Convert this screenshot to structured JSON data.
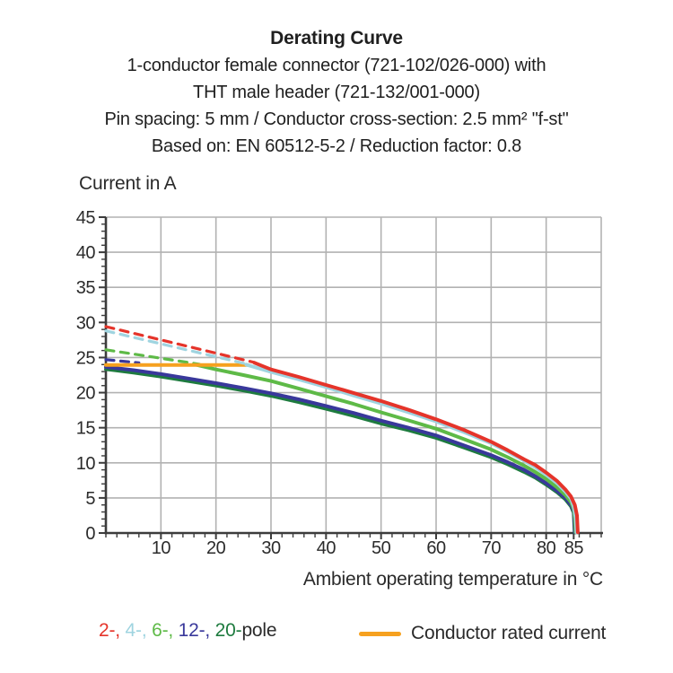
{
  "title": {
    "line1": "Derating Curve",
    "line2": "1-conductor female connector (721-102/026-000) with",
    "line3": "THT male header (721-132/001-000)",
    "line4": "Pin spacing: 5 mm / Conductor cross-section: 2.5 mm² \"f-st\"",
    "line5": "Based on: EN 60512-5-2 / Reduction factor: 0.8"
  },
  "colors": {
    "grid": "#b2b2b2",
    "axis": "#3c3c3c",
    "tick_text": "#2b2b2b",
    "pole2_red": "#e5342a",
    "pole4_cyan": "#9fd4e0",
    "pole6_green": "#5eba47",
    "pole12_navy": "#39389b",
    "pole20_darkgreen": "#1e7b3f",
    "rated_orange": "#f6a11f"
  },
  "chart_data": {
    "type": "line",
    "title": "Derating Curve",
    "ylabel": "Current in A",
    "xlabel": "Ambient operating temperature in °C",
    "xlim": [
      0,
      90
    ],
    "ylim": [
      0,
      45
    ],
    "grid": true,
    "x_major_ticks": [
      10,
      20,
      30,
      40,
      50,
      60,
      70,
      80,
      85
    ],
    "x_gridlines": [
      10,
      20,
      30,
      40,
      50,
      60,
      70,
      80,
      90
    ],
    "y_major_ticks": [
      0,
      5,
      10,
      15,
      20,
      25,
      30,
      35,
      40,
      45
    ],
    "x_minor_step": 2,
    "y_minor_step": 1,
    "legend_position": "bottom",
    "series": [
      {
        "name": "20-pole",
        "color": "#1e7b3f",
        "segments": [
          {
            "style": "solid",
            "points": [
              [
                0,
                23.35
              ],
              [
                5,
                22.85
              ],
              [
                10,
                22.3
              ],
              [
                15,
                21.65
              ],
              [
                20,
                21.0
              ],
              [
                25,
                20.3
              ],
              [
                30,
                19.55
              ],
              [
                35,
                18.65
              ],
              [
                40,
                17.7
              ],
              [
                45,
                16.7
              ],
              [
                50,
                15.6
              ],
              [
                55,
                14.65
              ],
              [
                60,
                13.55
              ],
              [
                65,
                12.2
              ],
              [
                70,
                10.8
              ],
              [
                73,
                9.8
              ],
              [
                76,
                8.7
              ],
              [
                78,
                7.9
              ],
              [
                80,
                6.9
              ],
              [
                82,
                5.8
              ],
              [
                83.5,
                4.8
              ],
              [
                84.5,
                3.8
              ],
              [
                85.0,
                2.9
              ],
              [
                85.1,
                1.3
              ],
              [
                85.15,
                0.1
              ]
            ]
          }
        ]
      },
      {
        "name": "12-pole",
        "color": "#39389b",
        "segments": [
          {
            "style": "dashed",
            "points": [
              [
                0,
                24.7
              ],
              [
                6,
                24.25
              ]
            ]
          },
          {
            "style": "solid",
            "points": [
              [
                0,
                23.65
              ],
              [
                5,
                23.2
              ],
              [
                10,
                22.65
              ],
              [
                15,
                22.0
              ],
              [
                20,
                21.35
              ],
              [
                25,
                20.65
              ],
              [
                30,
                19.9
              ],
              [
                35,
                19.05
              ],
              [
                40,
                18.1
              ],
              [
                45,
                17.1
              ],
              [
                50,
                16.0
              ],
              [
                55,
                15.0
              ],
              [
                60,
                13.9
              ],
              [
                65,
                12.5
              ],
              [
                70,
                11.1
              ],
              [
                73,
                10.1
              ],
              [
                76,
                9.0
              ],
              [
                78,
                8.1
              ],
              [
                80,
                7.1
              ],
              [
                82,
                6.0
              ],
              [
                83.5,
                5.0
              ],
              [
                84.5,
                4.0
              ],
              [
                85.0,
                3.1
              ],
              [
                85.15,
                1.5
              ],
              [
                85.2,
                0.1
              ]
            ]
          }
        ]
      },
      {
        "name": "6-pole",
        "color": "#5eba47",
        "segments": [
          {
            "style": "dashed",
            "points": [
              [
                0,
                26.1
              ],
              [
                17,
                24.05
              ]
            ]
          },
          {
            "style": "solid",
            "points": [
              [
                16.5,
                23.95
              ],
              [
                20,
                23.3
              ],
              [
                25,
                22.5
              ],
              [
                30,
                21.65
              ],
              [
                35,
                20.6
              ],
              [
                40,
                19.5
              ],
              [
                45,
                18.4
              ],
              [
                50,
                17.2
              ],
              [
                55,
                16.05
              ],
              [
                60,
                14.85
              ],
              [
                65,
                13.4
              ],
              [
                70,
                11.9
              ],
              [
                73,
                10.8
              ],
              [
                76,
                9.6
              ],
              [
                78,
                8.7
              ],
              [
                80,
                7.7
              ],
              [
                82,
                6.5
              ],
              [
                83.5,
                5.4
              ],
              [
                84.5,
                4.4
              ],
              [
                85.0,
                3.4
              ],
              [
                85.25,
                1.8
              ],
              [
                85.35,
                0.1
              ]
            ]
          }
        ]
      },
      {
        "name": "Conductor rated current",
        "color": "#f6a11f",
        "segments": [
          {
            "style": "solid",
            "points": [
              [
                0,
                23.95
              ],
              [
                25.8,
                23.95
              ]
            ]
          }
        ]
      },
      {
        "name": "4-pole",
        "color": "#9fd4e0",
        "segments": [
          {
            "style": "dashed",
            "points": [
              [
                0,
                28.8
              ],
              [
                25.5,
                24.1
              ]
            ]
          },
          {
            "style": "solid",
            "points": [
              [
                25.5,
                24.0
              ],
              [
                30,
                22.95
              ],
              [
                35,
                21.9
              ],
              [
                40,
                20.8
              ],
              [
                45,
                19.6
              ],
              [
                50,
                18.45
              ],
              [
                55,
                17.2
              ],
              [
                60,
                15.9
              ],
              [
                65,
                14.4
              ],
              [
                70,
                12.8
              ],
              [
                73,
                11.6
              ],
              [
                76,
                10.3
              ],
              [
                78,
                9.4
              ],
              [
                80,
                8.3
              ],
              [
                82,
                7.1
              ],
              [
                83.5,
                5.9
              ],
              [
                84.5,
                4.9
              ],
              [
                85.0,
                3.8
              ],
              [
                85.35,
                2.2
              ],
              [
                85.5,
                0.1
              ]
            ]
          }
        ]
      },
      {
        "name": "2-pole",
        "color": "#e5342a",
        "segments": [
          {
            "style": "dashed",
            "points": [
              [
                0,
                29.4
              ],
              [
                27,
                24.3
              ]
            ]
          },
          {
            "style": "solid",
            "points": [
              [
                27,
                24.25
              ],
              [
                30,
                23.3
              ],
              [
                35,
                22.25
              ],
              [
                40,
                21.1
              ],
              [
                45,
                19.95
              ],
              [
                50,
                18.8
              ],
              [
                55,
                17.55
              ],
              [
                60,
                16.2
              ],
              [
                65,
                14.7
              ],
              [
                70,
                13.0
              ],
              [
                73,
                11.8
              ],
              [
                76,
                10.5
              ],
              [
                78,
                9.7
              ],
              [
                80,
                8.6
              ],
              [
                82,
                7.4
              ],
              [
                83.5,
                6.2
              ],
              [
                84.5,
                5.2
              ],
              [
                85.2,
                4.0
              ],
              [
                85.6,
                2.5
              ],
              [
                85.75,
                0.1
              ]
            ]
          }
        ]
      }
    ]
  },
  "legend": {
    "pole_items": [
      {
        "label": "2-",
        "color": "#e5342a"
      },
      {
        "label": "4-",
        "color": "#9fd4e0"
      },
      {
        "label": "6-",
        "color": "#5eba47"
      },
      {
        "label": "12-",
        "color": "#39389b"
      },
      {
        "label": "20-",
        "color": "#1e7b3f"
      }
    ],
    "separator": ", ",
    "suffix": "pole",
    "rated": {
      "label": "Conductor rated current",
      "color": "#f6a11f"
    }
  }
}
